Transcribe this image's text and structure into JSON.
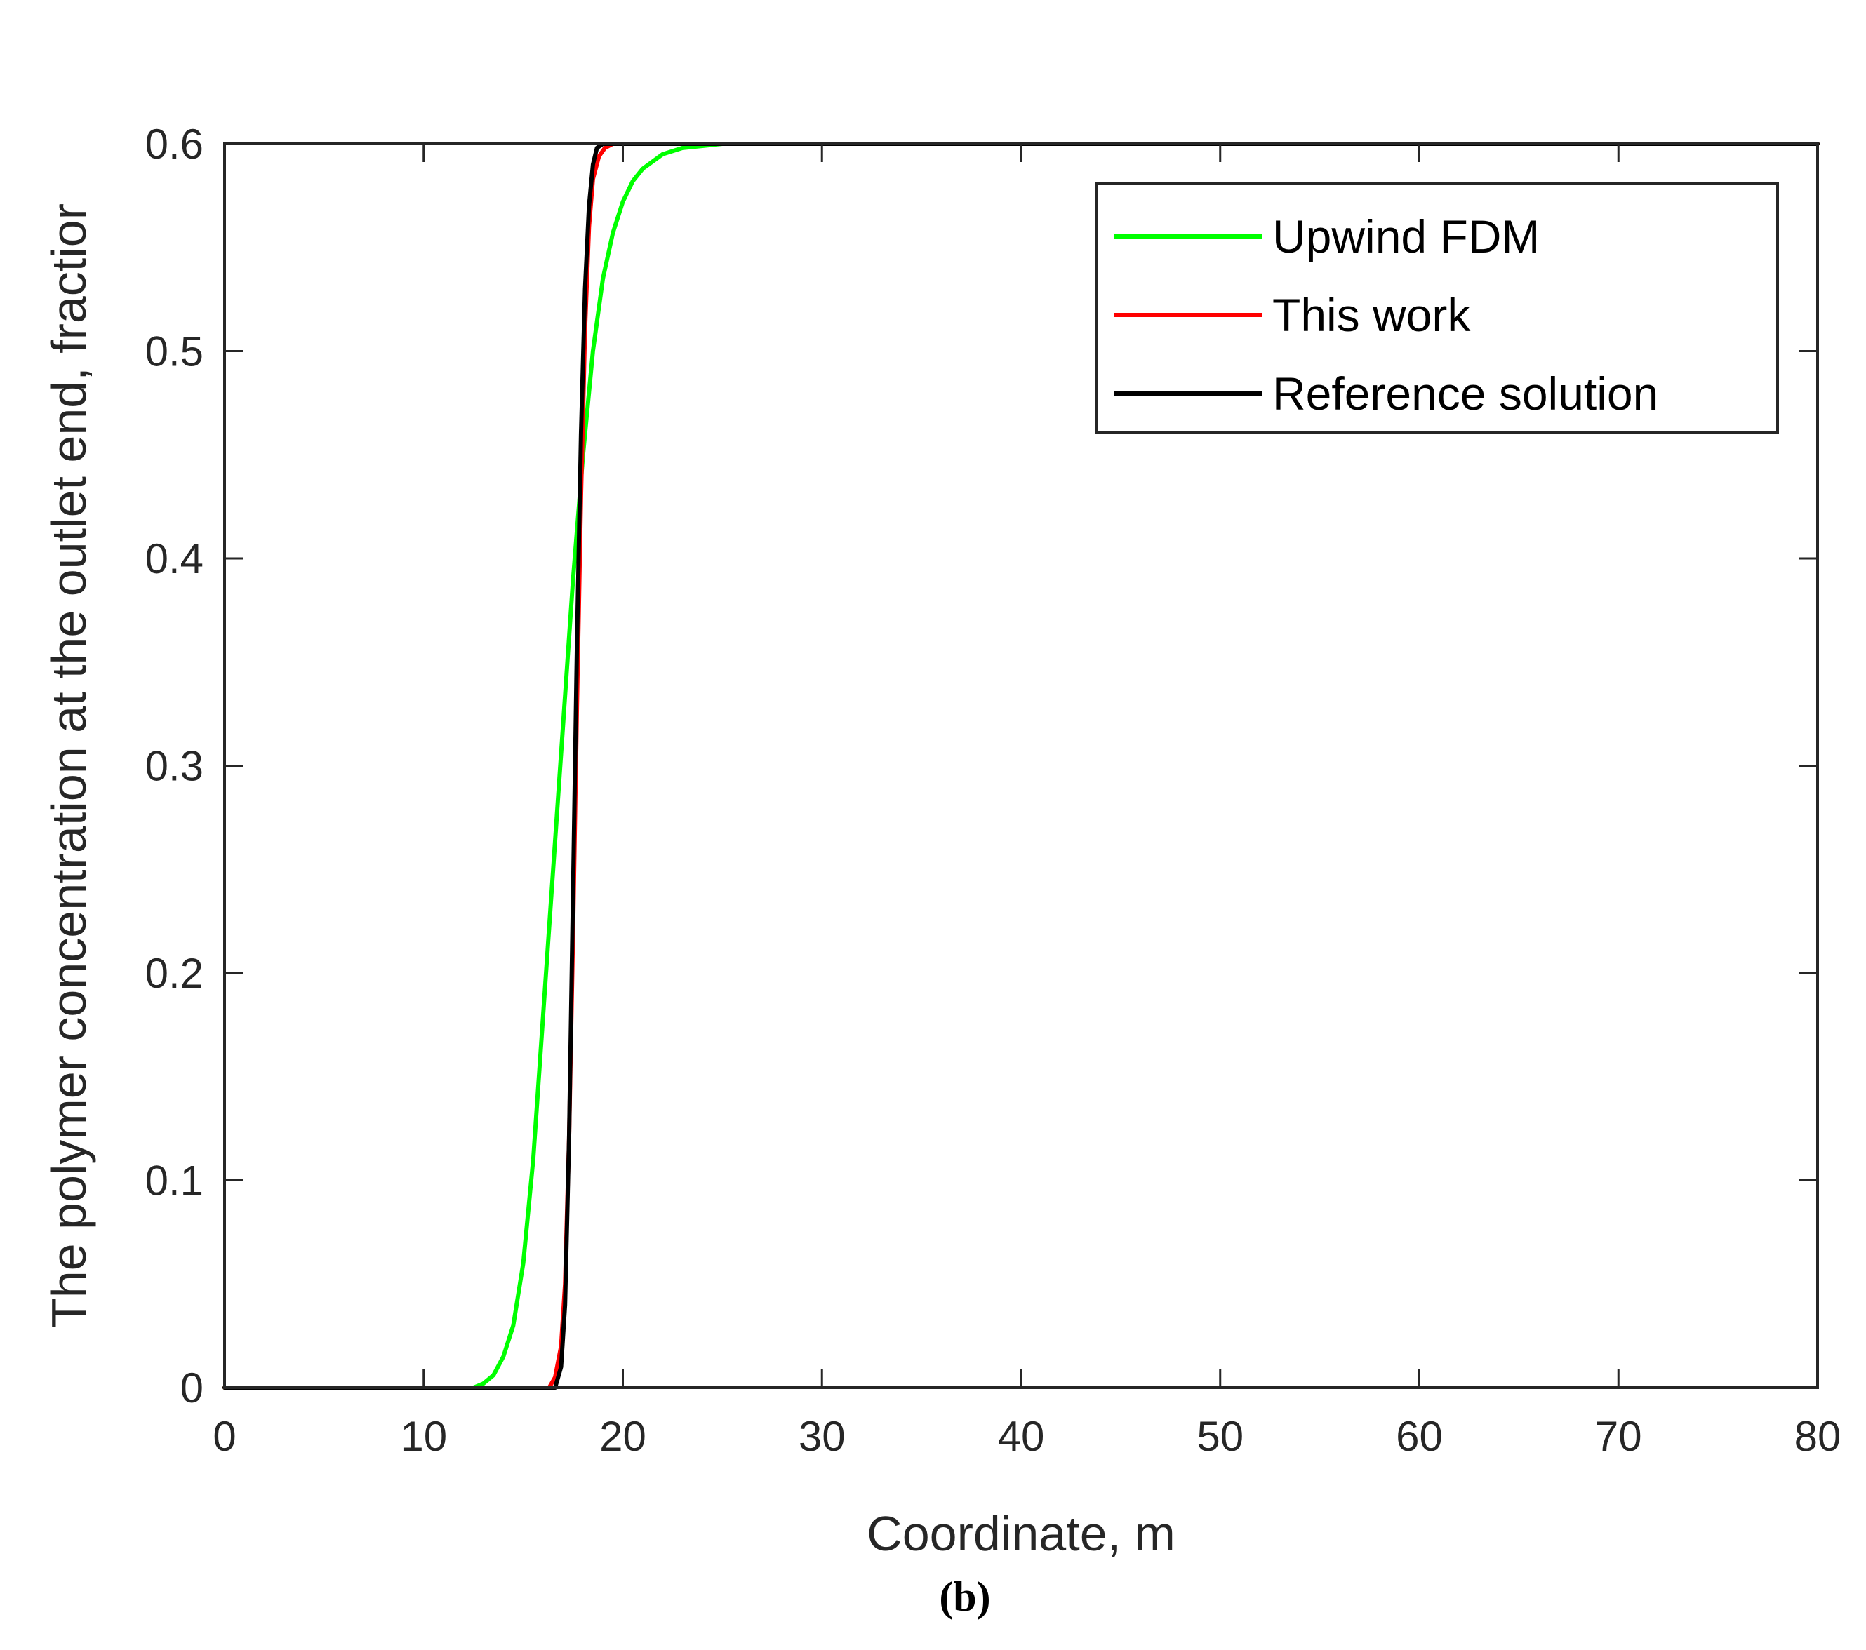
{
  "chart_data": {
    "type": "line",
    "xlabel": "Coordinate, m",
    "ylabel": "The polymer concentration at the outlet end, fractior",
    "panel_label": "(b)",
    "xlim": [
      0,
      80
    ],
    "ylim": [
      0,
      0.6
    ],
    "xticks": [
      0,
      10,
      20,
      30,
      40,
      50,
      60,
      70,
      80
    ],
    "yticks": [
      0,
      0.1,
      0.2,
      0.3,
      0.4,
      0.5,
      0.6
    ],
    "xtick_labels": [
      "0",
      "10",
      "20",
      "30",
      "40",
      "50",
      "60",
      "70",
      "80"
    ],
    "ytick_labels": [
      "0",
      "0.1",
      "0.2",
      "0.3",
      "0.4",
      "0.5",
      "0.6"
    ],
    "grid": false,
    "legend": {
      "placement": "top-right"
    },
    "series": [
      {
        "name": "Upwind FDM",
        "color": "#00ff00",
        "x": [
          0,
          10,
          12.5,
          13,
          13.5,
          14,
          14.5,
          15,
          15.5,
          16,
          16.5,
          17,
          17.5,
          18,
          18.5,
          19,
          19.5,
          20,
          20.5,
          21,
          22,
          23,
          24,
          25,
          80
        ],
        "y": [
          0,
          0,
          0,
          0.002,
          0.006,
          0.015,
          0.03,
          0.06,
          0.11,
          0.18,
          0.25,
          0.32,
          0.39,
          0.45,
          0.5,
          0.535,
          0.557,
          0.572,
          0.582,
          0.588,
          0.595,
          0.598,
          0.599,
          0.6,
          0.6
        ]
      },
      {
        "name": "This work",
        "color": "#ff0000",
        "x": [
          0,
          16.3,
          16.6,
          16.9,
          17.1,
          17.3,
          17.5,
          17.7,
          17.9,
          18.1,
          18.3,
          18.5,
          18.8,
          19.1,
          19.5,
          20,
          80
        ],
        "y": [
          0,
          0,
          0.005,
          0.02,
          0.05,
          0.12,
          0.22,
          0.33,
          0.43,
          0.51,
          0.56,
          0.583,
          0.594,
          0.598,
          0.6,
          0.6,
          0.6
        ]
      },
      {
        "name": "Reference solution",
        "color": "#000000",
        "x": [
          0,
          16.6,
          16.9,
          17.1,
          17.3,
          17.5,
          17.7,
          17.9,
          18.1,
          18.3,
          18.5,
          18.7,
          19,
          80
        ],
        "y": [
          0,
          0,
          0.01,
          0.04,
          0.12,
          0.24,
          0.36,
          0.46,
          0.53,
          0.57,
          0.59,
          0.598,
          0.6,
          0.6
        ]
      }
    ]
  }
}
